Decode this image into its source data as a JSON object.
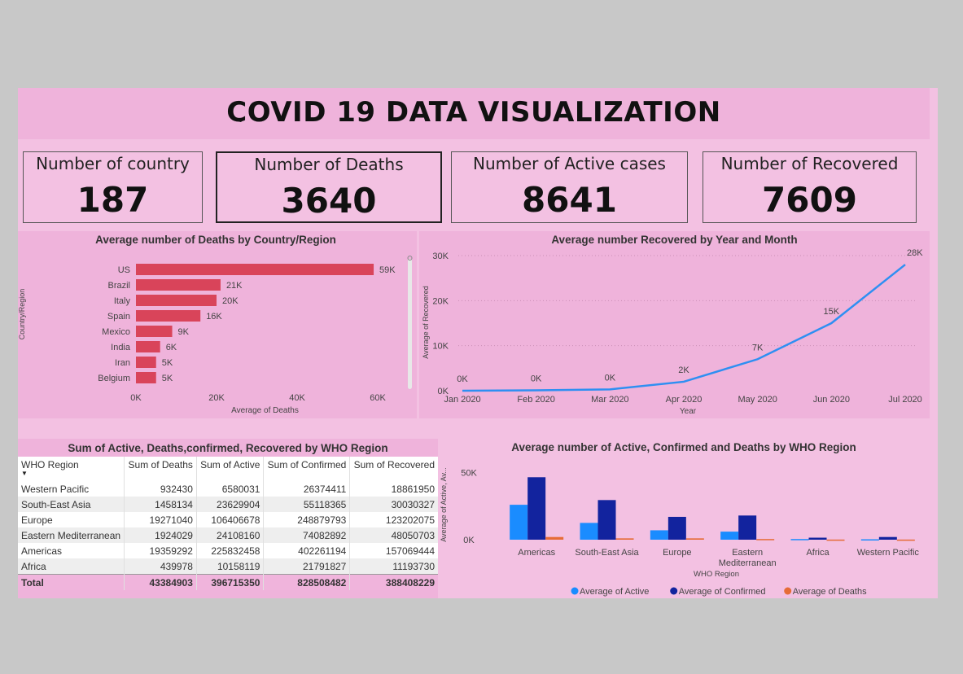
{
  "title": "COVID 19 DATA VISUALIZATION",
  "kpis": {
    "countries": {
      "label": "Number of country",
      "value": "187"
    },
    "deaths": {
      "label": "Number of Deaths",
      "value": "3640"
    },
    "active": {
      "label": "Number of Active cases",
      "value": "8641"
    },
    "recovered": {
      "label": "Number of Recovered",
      "value": "7609"
    }
  },
  "colors": {
    "background": "#f3c1e2",
    "panel": "#efb3db",
    "bar_red": "#d9445a",
    "line_blue": "#2e8ff2",
    "active": "#1a8cff",
    "confirmed": "#12239e",
    "deaths": "#e66c37"
  },
  "chart_data": [
    {
      "type": "bar",
      "orientation": "horizontal",
      "title": "Average number of Deaths by Country/Region",
      "xlabel": "Average of Deaths",
      "ylabel": "Country/Region",
      "categories": [
        "US",
        "Brazil",
        "Italy",
        "Spain",
        "Mexico",
        "India",
        "Iran",
        "Belgium"
      ],
      "values": [
        59000,
        21000,
        20000,
        16000,
        9000,
        6000,
        5000,
        5000
      ],
      "data_labels": [
        "59K",
        "21K",
        "20K",
        "16K",
        "9K",
        "6K",
        "5K",
        "5K"
      ],
      "xlim": [
        0,
        60000
      ],
      "xticks": [
        "0K",
        "20K",
        "40K",
        "60K"
      ],
      "grid": false
    },
    {
      "type": "line",
      "title": "Average number Recovered by Year and Month",
      "xlabel": "Year",
      "ylabel": "Average of Recovered",
      "x": [
        "Jan 2020",
        "Feb 2020",
        "Mar 2020",
        "Apr 2020",
        "May 2020",
        "Jun 2020",
        "Jul 2020"
      ],
      "values": [
        0,
        100,
        300,
        2000,
        7000,
        15000,
        28000
      ],
      "data_labels": [
        "0K",
        "0K",
        "0K",
        "2K",
        "7K",
        "15K",
        "28K"
      ],
      "ylim": [
        0,
        30000
      ],
      "yticks": [
        "0K",
        "10K",
        "20K",
        "30K"
      ],
      "grid": true
    },
    {
      "type": "bar",
      "title": "Average number of Active, Confirmed and Deaths by WHO Region",
      "xlabel": "WHO Region",
      "ylabel": "Average of Active, Av...",
      "categories": [
        "Americas",
        "South-East Asia",
        "Europe",
        "Eastern Mediterranean",
        "Africa",
        "Western Pacific"
      ],
      "series": [
        {
          "name": "Average of Active",
          "values": [
            26000,
            12500,
            7000,
            6000,
            500,
            300
          ]
        },
        {
          "name": "Average of Confirmed",
          "values": [
            46500,
            29500,
            17000,
            18000,
            1500,
            2000
          ]
        },
        {
          "name": "Average of Deaths",
          "values": [
            2000,
            1000,
            1000,
            500,
            100,
            100
          ]
        }
      ],
      "ylim": [
        0,
        60000
      ],
      "yticks": [
        "0K",
        "50K"
      ],
      "legend": "bottom"
    }
  ],
  "table": {
    "title": "Sum of Active, Deaths,confirmed, Recovered by WHO Region",
    "columns": [
      "WHO Region",
      "Sum of Deaths",
      "Sum of Active",
      "Sum of Confirmed",
      "Sum of Recovered"
    ],
    "rows": [
      [
        "Western Pacific",
        "932430",
        "6580031",
        "26374411",
        "18861950"
      ],
      [
        "South-East Asia",
        "1458134",
        "23629904",
        "55118365",
        "30030327"
      ],
      [
        "Europe",
        "19271040",
        "106406678",
        "248879793",
        "123202075"
      ],
      [
        "Eastern Mediterranean",
        "1924029",
        "24108160",
        "74082892",
        "48050703"
      ],
      [
        "Americas",
        "19359292",
        "225832458",
        "402261194",
        "157069444"
      ],
      [
        "Africa",
        "439978",
        "10158119",
        "21791827",
        "11193730"
      ]
    ],
    "total": [
      "Total",
      "43384903",
      "396715350",
      "828508482",
      "388408229"
    ]
  }
}
